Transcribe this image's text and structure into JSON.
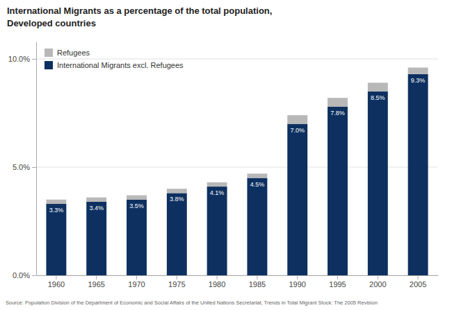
{
  "chart_data": {
    "type": "bar",
    "stacked": true,
    "title": "International Migrants as a percentage of the total population,",
    "subtitle": "Developed countries",
    "categories": [
      "1960",
      "1965",
      "1970",
      "1975",
      "1980",
      "1985",
      "1990",
      "1995",
      "2000",
      "2005"
    ],
    "series": [
      {
        "name": "International Migrants excl. Refugees",
        "color": "#0d3060",
        "values": [
          3.3,
          3.4,
          3.5,
          3.8,
          4.1,
          4.5,
          7.0,
          7.8,
          8.5,
          9.3
        ],
        "value_labels": [
          "3.3%",
          "3.4%",
          "3.5%",
          "3.8%",
          "4.1%",
          "4.5%",
          "7.0%",
          "7.8%",
          "8.5%",
          "9.3%"
        ]
      },
      {
        "name": "Refugees",
        "color": "#b8b8b8",
        "values": [
          0.2,
          0.2,
          0.2,
          0.2,
          0.2,
          0.2,
          0.4,
          0.4,
          0.4,
          0.3
        ]
      }
    ],
    "ylim": [
      0,
      10.8
    ],
    "yticks": [
      {
        "value": 0.0,
        "label": "0.0%"
      },
      {
        "value": 5.0,
        "label": "5.0%"
      },
      {
        "value": 10.0,
        "label": "10.0%"
      }
    ],
    "grid": true,
    "legend": "upper left",
    "source": "Source: Population Division of the Department of Economic and Social Affairs of the United Nations Secretariat, Trends in Total Migrant Stock: The 2005 Revision"
  }
}
